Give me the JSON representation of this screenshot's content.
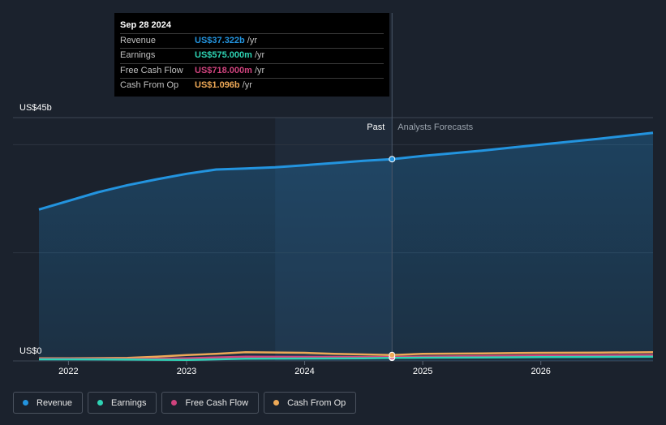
{
  "tooltip": {
    "date": "Sep 28 2024",
    "rows": [
      {
        "label": "Revenue",
        "value": "US$37.322b",
        "unit": "/yr",
        "color": "#2394df"
      },
      {
        "label": "Earnings",
        "value": "US$575.000m",
        "unit": "/yr",
        "color": "#2ed3b4"
      },
      {
        "label": "Free Cash Flow",
        "value": "US$718.000m",
        "unit": "/yr",
        "color": "#d0437e"
      },
      {
        "label": "Cash From Op",
        "value": "US$1.096b",
        "unit": "/yr",
        "color": "#eea957"
      }
    ]
  },
  "legend": [
    {
      "label": "Revenue",
      "color": "#2394df"
    },
    {
      "label": "Earnings",
      "color": "#2ed3b4"
    },
    {
      "label": "Free Cash Flow",
      "color": "#d0437e"
    },
    {
      "label": "Cash From Op",
      "color": "#eea957"
    }
  ],
  "chart_data": {
    "type": "area",
    "y_unit_prefix": "US$",
    "ylim": [
      0,
      45
    ],
    "xlim": [
      2021.75,
      2026.95
    ],
    "y_tick_labels": [
      {
        "value": 45,
        "label": "US$45b"
      },
      {
        "value": 0,
        "label": "US$0"
      }
    ],
    "x_ticks": [
      2022,
      2023,
      2024,
      2025,
      2026
    ],
    "past_label": "Past",
    "forecast_label": "Analysts Forecasts",
    "past_region_start": 2023.75,
    "divider_x": 2024.74,
    "series": [
      {
        "name": "Revenue",
        "color": "#2394df",
        "x": [
          2021.75,
          2022.0,
          2022.25,
          2022.5,
          2022.75,
          2023.0,
          2023.25,
          2023.5,
          2023.75,
          2024.0,
          2024.25,
          2024.5,
          2024.74,
          2025.0,
          2025.5,
          2026.0,
          2026.5,
          2026.95
        ],
        "y": [
          28.0,
          29.6,
          31.2,
          32.5,
          33.6,
          34.6,
          35.4,
          35.6,
          35.8,
          36.2,
          36.6,
          37.0,
          37.32,
          37.9,
          38.9,
          40.0,
          41.1,
          42.2
        ]
      },
      {
        "name": "Earnings",
        "color": "#2ed3b4",
        "x": [
          2021.75,
          2022.0,
          2022.5,
          2023.0,
          2023.5,
          2024.0,
          2024.5,
          2024.74,
          2025.0,
          2025.5,
          2026.0,
          2026.5,
          2026.95
        ],
        "y": [
          0.3,
          0.3,
          0.25,
          0.2,
          0.4,
          0.45,
          0.5,
          0.575,
          0.6,
          0.65,
          0.7,
          0.75,
          0.8
        ]
      },
      {
        "name": "Free Cash Flow",
        "color": "#d0437e",
        "x": [
          2021.75,
          2022.0,
          2022.5,
          2023.0,
          2023.5,
          2024.0,
          2024.5,
          2024.74,
          2025.0,
          2025.5,
          2026.0,
          2026.5,
          2026.95
        ],
        "y": [
          0.4,
          0.4,
          0.35,
          0.5,
          0.8,
          0.75,
          0.7,
          0.718,
          0.8,
          0.9,
          1.0,
          1.05,
          1.1
        ]
      },
      {
        "name": "Cash From Op",
        "color": "#eea957",
        "x": [
          2021.75,
          2022.0,
          2022.5,
          2022.75,
          2023.0,
          2023.25,
          2023.5,
          2024.0,
          2024.25,
          2024.5,
          2024.74,
          2025.0,
          2025.5,
          2026.0,
          2026.5,
          2026.95
        ],
        "y": [
          0.5,
          0.5,
          0.55,
          0.8,
          1.1,
          1.3,
          1.6,
          1.5,
          1.3,
          1.2,
          1.096,
          1.3,
          1.4,
          1.5,
          1.55,
          1.6
        ]
      }
    ]
  }
}
